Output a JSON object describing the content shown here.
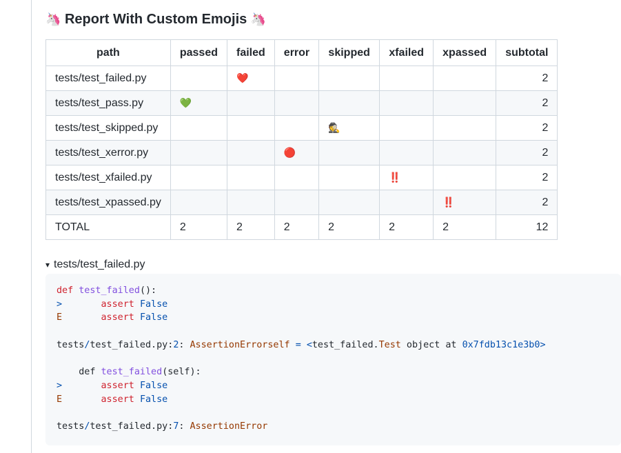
{
  "title": {
    "text": "Report With Custom Emojis",
    "left_emoji": "🦄",
    "right_emoji": "🦄"
  },
  "table": {
    "headers": [
      "path",
      "passed",
      "failed",
      "error",
      "skipped",
      "xfailed",
      "xpassed",
      "subtotal"
    ],
    "rows": [
      {
        "path": "tests/test_failed.py",
        "passed": "",
        "failed": "❤️",
        "error": "",
        "skipped": "",
        "xfailed": "",
        "xpassed": "",
        "subtotal": "2"
      },
      {
        "path": "tests/test_pass.py",
        "passed": "💚",
        "failed": "",
        "error": "",
        "skipped": "",
        "xfailed": "",
        "xpassed": "",
        "subtotal": "2"
      },
      {
        "path": "tests/test_skipped.py",
        "passed": "",
        "failed": "",
        "error": "",
        "skipped": "🕵️",
        "xfailed": "",
        "xpassed": "",
        "subtotal": "2"
      },
      {
        "path": "tests/test_xerror.py",
        "passed": "",
        "failed": "",
        "error": "🔴",
        "skipped": "",
        "xfailed": "",
        "xpassed": "",
        "subtotal": "2"
      },
      {
        "path": "tests/test_xfailed.py",
        "passed": "",
        "failed": "",
        "error": "",
        "skipped": "",
        "xfailed": "‼️",
        "xpassed": "",
        "subtotal": "2"
      },
      {
        "path": "tests/test_xpassed.py",
        "passed": "",
        "failed": "",
        "error": "",
        "skipped": "",
        "xfailed": "",
        "xpassed": "‼️",
        "subtotal": "2"
      }
    ],
    "total": {
      "path": "TOTAL",
      "passed": "2",
      "failed": "2",
      "error": "2",
      "skipped": "2",
      "xfailed": "2",
      "xpassed": "2",
      "subtotal": "12"
    }
  },
  "details": {
    "marker": "▾",
    "summary": "tests/test_failed.py"
  },
  "code": {
    "def_kw": "def",
    "func_name": "test_failed",
    "parens": "():",
    "gt_marker": ">",
    "e_marker": "E",
    "assert_kw": "assert",
    "false_const": "False",
    "path_dir": "tests",
    "slash": "/",
    "file": "test_failed.py",
    "colon": ":",
    "line1": "2",
    "exc": "AssertionError",
    "self_word": "self",
    "eq": "=",
    "lt": "<",
    "obj_prefix": "test_failed.",
    "test_cls": "Test",
    "obj_at": " object at ",
    "addr": "0x7fdb13c1e3b0",
    "gt": ">",
    "method_def": "def",
    "method_params": "(self):",
    "line2": "7"
  },
  "colors": {
    "keyword": "#cf222e",
    "function": "#8250df",
    "constant": "#0550ae",
    "exception": "#953800",
    "code_bg": "#f6f8fa",
    "border": "#d0d7de"
  }
}
